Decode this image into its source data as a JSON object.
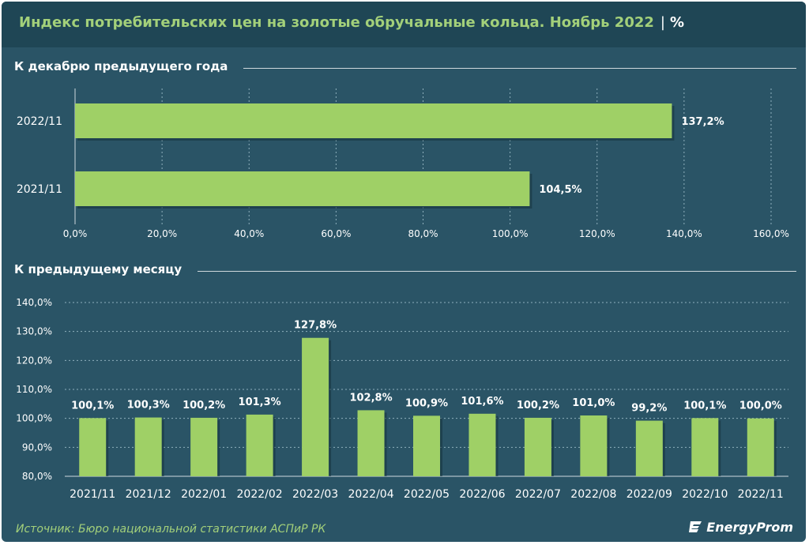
{
  "header": {
    "title": "Индекс потребительских цен на золотые обручальные кольца. Ноябрь 2022",
    "separator": "|",
    "unit": "%"
  },
  "colors": {
    "background": "#2a5466",
    "title_bar": "#1f4655",
    "bar": "#9fd066",
    "accent_text": "#a3d07a",
    "text": "#ffffff"
  },
  "chart_data": [
    {
      "type": "bar",
      "orientation": "horizontal",
      "title": "К декабрю предыдущего года",
      "categories": [
        "2022/11",
        "2021/11"
      ],
      "values": [
        137.2,
        104.5
      ],
      "value_labels": [
        "137,2%",
        "104,5%"
      ],
      "xlim": [
        0,
        160
      ],
      "xticks": [
        0,
        20,
        40,
        60,
        80,
        100,
        120,
        140,
        160
      ],
      "xtick_labels": [
        "0,0%",
        "20,0%",
        "40,0%",
        "60,0%",
        "80,0%",
        "100,0%",
        "120,0%",
        "140,0%",
        "160,0%"
      ],
      "grid": true
    },
    {
      "type": "bar",
      "orientation": "vertical",
      "title": "К предыдущему месяцу",
      "categories": [
        "2021/11",
        "2021/12",
        "2022/01",
        "2022/02",
        "2022/03",
        "2022/04",
        "2022/05",
        "2022/06",
        "2022/07",
        "2022/08",
        "2022/09",
        "2022/10",
        "2022/11"
      ],
      "values": [
        100.1,
        100.3,
        100.2,
        101.3,
        127.8,
        102.8,
        100.9,
        101.6,
        100.2,
        101.0,
        99.2,
        100.1,
        100.0
      ],
      "value_labels": [
        "100,1%",
        "100,3%",
        "100,2%",
        "101,3%",
        "127,8%",
        "102,8%",
        "100,9%",
        "101,6%",
        "100,2%",
        "101,0%",
        "99,2%",
        "100,1%",
        "100,0%"
      ],
      "ylim": [
        80,
        140
      ],
      "yticks": [
        80,
        90,
        100,
        110,
        120,
        130,
        140
      ],
      "ytick_labels": [
        "80,0%",
        "90,0%",
        "100,0%",
        "110,0%",
        "120,0%",
        "130,0%",
        "140,0%"
      ],
      "grid": true
    }
  ],
  "footer": {
    "source": "Источник: Бюро национальной статистики АСПиР РК",
    "logo": "EnergyProm"
  }
}
